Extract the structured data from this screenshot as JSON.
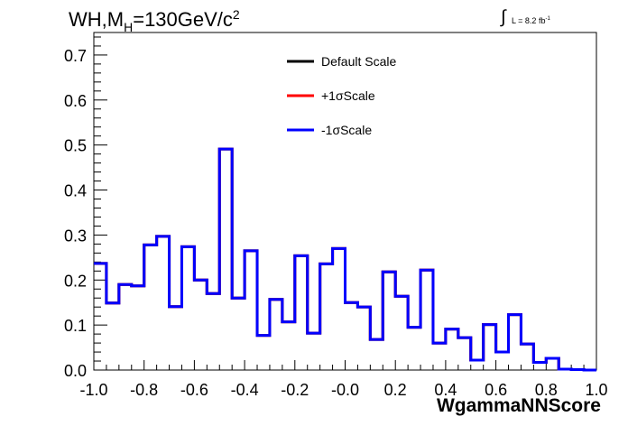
{
  "header": {
    "title_main": "WH,M",
    "title_sub": "H",
    "title_rest": "=130GeV/c",
    "title_sup": "2",
    "lumi_text": "L = 8.2 fb",
    "lumi_sup": "-1"
  },
  "chart_data": {
    "type": "line",
    "title": "WH,MH=130GeV/c2",
    "xlabel": "WgammaNNScore",
    "ylabel": "",
    "xlim": [
      -1.0,
      1.0
    ],
    "ylim": [
      0.0,
      0.75
    ],
    "x_ticks": [
      "-1.0",
      "-0.8",
      "-0.6",
      "-0.4",
      "-0.2",
      "-0.0",
      "0.2",
      "0.4",
      "0.6",
      "0.8",
      "1.0"
    ],
    "y_ticks": [
      "0.0",
      "0.1",
      "0.2",
      "0.3",
      "0.4",
      "0.5",
      "0.6",
      "0.7"
    ],
    "bin_edges": [
      -1.0,
      0.95
    ],
    "bin_width": 0.05,
    "legend": [
      "Default Scale",
      "+1σScale",
      "-1σScale"
    ],
    "legend_position": "top-center",
    "series": [
      {
        "name": "Default Scale",
        "color": "#000000",
        "values": [
          0.237,
          0.149,
          0.19,
          0.187,
          0.278,
          0.297,
          0.141,
          0.274,
          0.2,
          0.17,
          0.491,
          0.16,
          0.265,
          0.077,
          0.157,
          0.107,
          0.254,
          0.082,
          0.236,
          0.27,
          0.15,
          0.14,
          0.068,
          0.218,
          0.164,
          0.095,
          0.222,
          0.06,
          0.091,
          0.072,
          0.022,
          0.101,
          0.04,
          0.123,
          0.058,
          0.017,
          0.026,
          0.002,
          0.001,
          0.0
        ]
      },
      {
        "name": "+1σScale",
        "color": "#ff0000",
        "values": [
          0.237,
          0.149,
          0.19,
          0.187,
          0.278,
          0.297,
          0.141,
          0.274,
          0.2,
          0.17,
          0.491,
          0.16,
          0.265,
          0.077,
          0.157,
          0.107,
          0.254,
          0.082,
          0.236,
          0.27,
          0.15,
          0.14,
          0.068,
          0.218,
          0.164,
          0.095,
          0.222,
          0.06,
          0.091,
          0.072,
          0.022,
          0.101,
          0.04,
          0.123,
          0.058,
          0.017,
          0.026,
          0.002,
          0.001,
          0.0
        ]
      },
      {
        "name": "-1σScale",
        "color": "#0000ff",
        "values": [
          0.237,
          0.149,
          0.19,
          0.187,
          0.278,
          0.297,
          0.141,
          0.274,
          0.2,
          0.17,
          0.491,
          0.16,
          0.265,
          0.077,
          0.157,
          0.107,
          0.254,
          0.082,
          0.236,
          0.27,
          0.15,
          0.14,
          0.068,
          0.218,
          0.164,
          0.095,
          0.222,
          0.06,
          0.091,
          0.072,
          0.022,
          0.101,
          0.04,
          0.123,
          0.058,
          0.017,
          0.026,
          0.002,
          0.001,
          0.0
        ]
      }
    ]
  }
}
